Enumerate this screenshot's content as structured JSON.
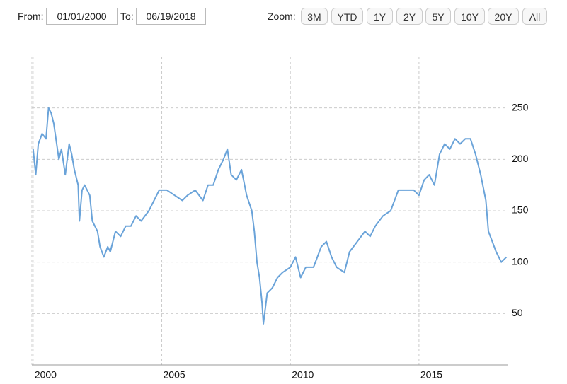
{
  "controls": {
    "from_label": "From:",
    "from_value": "01/01/2000",
    "to_label": "To:",
    "to_value": "06/19/2018",
    "zoom_label": "Zoom:",
    "zoom_buttons": [
      "3M",
      "YTD",
      "1Y",
      "2Y",
      "5Y",
      "10Y",
      "20Y",
      "All"
    ]
  },
  "chart_data": {
    "type": "line",
    "x": [
      2000.0,
      2000.1,
      2000.2,
      2000.35,
      2000.5,
      2000.6,
      2000.7,
      2000.8,
      2001.0,
      2001.1,
      2001.25,
      2001.4,
      2001.5,
      2001.6,
      2001.75,
      2001.8,
      2001.9,
      2002.0,
      2002.2,
      2002.3,
      2002.5,
      2002.6,
      2002.75,
      2002.9,
      2003.0,
      2003.2,
      2003.4,
      2003.6,
      2003.8,
      2004.0,
      2004.2,
      2004.5,
      2004.7,
      2004.9,
      2005.2,
      2005.5,
      2005.8,
      2006.0,
      2006.3,
      2006.6,
      2006.8,
      2007.0,
      2007.2,
      2007.4,
      2007.55,
      2007.7,
      2007.9,
      2008.1,
      2008.3,
      2008.5,
      2008.6,
      2008.7,
      2008.8,
      2008.9,
      2008.95,
      2009.1,
      2009.3,
      2009.5,
      2009.7,
      2010.0,
      2010.2,
      2010.4,
      2010.6,
      2010.9,
      2011.2,
      2011.4,
      2011.6,
      2011.8,
      2012.1,
      2012.3,
      2012.6,
      2012.9,
      2013.1,
      2013.3,
      2013.6,
      2013.9,
      2014.2,
      2014.5,
      2014.8,
      2015.0,
      2015.2,
      2015.4,
      2015.6,
      2015.8,
      2016.0,
      2016.2,
      2016.4,
      2016.6,
      2016.8,
      2017.0,
      2017.2,
      2017.4,
      2017.6,
      2017.7,
      2017.85,
      2018.0,
      2018.2,
      2018.4
    ],
    "series": [
      {
        "color": "#6aa3d9",
        "values": [
          210,
          185,
          215,
          225,
          220,
          250,
          245,
          235,
          200,
          210,
          185,
          215,
          205,
          190,
          175,
          140,
          170,
          175,
          165,
          140,
          130,
          115,
          105,
          115,
          110,
          130,
          125,
          135,
          135,
          145,
          140,
          150,
          160,
          170,
          170,
          165,
          160,
          165,
          170,
          160,
          175,
          175,
          190,
          200,
          210,
          185,
          180,
          190,
          165,
          150,
          130,
          100,
          85,
          60,
          40,
          70,
          75,
          85,
          90,
          95,
          105,
          85,
          95,
          95,
          115,
          120,
          105,
          95,
          90,
          110,
          120,
          130,
          125,
          135,
          145,
          150,
          170,
          170,
          170,
          165,
          180,
          185,
          175,
          205,
          215,
          210,
          220,
          215,
          220,
          220,
          205,
          185,
          160,
          130,
          120,
          110,
          100,
          105
        ]
      }
    ],
    "xlim": [
      1999.95,
      2018.47
    ],
    "xticks": [
      2000,
      2005,
      2010,
      2015
    ],
    "ylim": [
      0,
      300
    ],
    "yticks": [
      50,
      100,
      150,
      200,
      250
    ],
    "grid": true
  }
}
